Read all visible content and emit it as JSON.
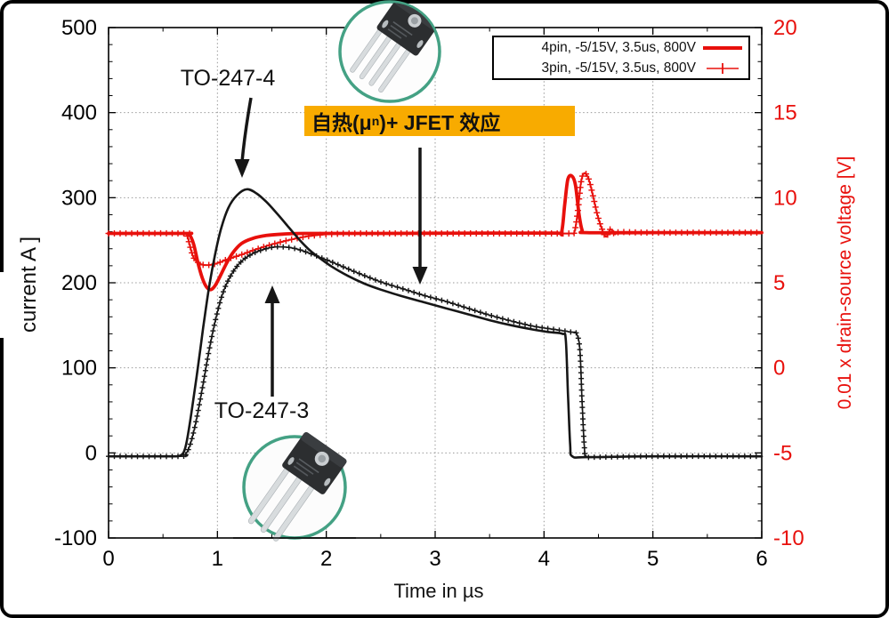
{
  "colors": {
    "red": "#e8100c",
    "black": "#161616",
    "grid": "#999999",
    "highlight": "#F8AB00",
    "ring": "#44A184"
  },
  "axes": {
    "x": {
      "label": "Time in µs",
      "min": 0,
      "max": 6,
      "ticks": [
        0,
        1,
        2,
        3,
        4,
        5,
        6
      ],
      "minor_step": 0.5
    },
    "y_left": {
      "label": "current A ]",
      "min": -100,
      "max": 500,
      "ticks": [
        500,
        400,
        300,
        200,
        100,
        0,
        -100
      ],
      "minor_step": 20
    },
    "y_right": {
      "label": "0.01 x drain-source voltage [V]",
      "min": -10,
      "max": 20,
      "ticks": [
        20,
        15,
        10,
        5,
        0,
        -5,
        -10
      ],
      "minor_step": 1
    }
  },
  "legend": {
    "entries": [
      {
        "label": "4pin, -5/15V, 3.5us, 800V",
        "style": "solid"
      },
      {
        "label": "3pin, -5/15V, 3.5us, 800V",
        "style": "plus"
      }
    ]
  },
  "annotations": {
    "package_top_label": "TO-247-4",
    "package_bottom_label": "TO-247-3",
    "effect_prefix": "自热(μ",
    "effect_sub": "n",
    "effect_suffix": ")+ JFET 效应"
  },
  "chart_data": {
    "type": "line",
    "title": "",
    "x": {
      "label": "Time in µs",
      "range": [
        0,
        6
      ]
    },
    "y_left": {
      "label": "current A ]",
      "range": [
        -100,
        500
      ]
    },
    "y_right": {
      "label": "0.01 x drain-source voltage [V]",
      "range": [
        -10,
        20
      ]
    },
    "grid": true,
    "legend_position": "top-right",
    "series": [
      {
        "name": "3pin, -5/15V, 3.5us, 800V (voltage)",
        "id": "3pin-voltage",
        "axis": "right",
        "style": "plus",
        "color": "#e8100c",
        "points": [
          [
            0,
            7.9
          ],
          [
            0.69,
            7.9
          ],
          [
            0.72,
            7.8
          ],
          [
            0.75,
            7.1
          ],
          [
            0.78,
            6.5
          ],
          [
            0.82,
            6.2
          ],
          [
            0.87,
            6.05
          ],
          [
            0.93,
            6.05
          ],
          [
            1.0,
            6.15
          ],
          [
            1.1,
            6.4
          ],
          [
            1.22,
            6.65
          ],
          [
            1.35,
            6.95
          ],
          [
            1.5,
            7.25
          ],
          [
            1.65,
            7.5
          ],
          [
            1.8,
            7.7
          ],
          [
            1.95,
            7.82
          ],
          [
            2.1,
            7.88
          ],
          [
            2.3,
            7.9
          ],
          [
            3.0,
            7.9
          ],
          [
            4.0,
            7.9
          ],
          [
            4.24,
            7.9
          ],
          [
            4.28,
            8.0
          ],
          [
            4.31,
            9.2
          ],
          [
            4.34,
            10.9
          ],
          [
            4.37,
            11.45
          ],
          [
            4.41,
            11.1
          ],
          [
            4.45,
            10.1
          ],
          [
            4.49,
            9.0
          ],
          [
            4.53,
            8.2
          ],
          [
            4.57,
            7.7
          ],
          [
            4.61,
            8.15
          ],
          [
            4.65,
            7.85
          ],
          [
            4.7,
            7.98
          ],
          [
            5,
            7.95
          ],
          [
            6,
            7.95
          ]
        ]
      },
      {
        "name": "4pin, -5/15V, 3.5us, 800V (voltage)",
        "id": "4pin-voltage",
        "axis": "right",
        "style": "solid",
        "color": "#e8100c",
        "points": [
          [
            0,
            7.9
          ],
          [
            0.7,
            7.9
          ],
          [
            0.74,
            7.85
          ],
          [
            0.78,
            7.3
          ],
          [
            0.82,
            6.2
          ],
          [
            0.86,
            5.3
          ],
          [
            0.9,
            4.75
          ],
          [
            0.94,
            4.6
          ],
          [
            0.98,
            4.85
          ],
          [
            1.03,
            5.45
          ],
          [
            1.08,
            6.1
          ],
          [
            1.14,
            6.75
          ],
          [
            1.22,
            7.3
          ],
          [
            1.32,
            7.6
          ],
          [
            1.45,
            7.78
          ],
          [
            1.6,
            7.86
          ],
          [
            1.8,
            7.9
          ],
          [
            2.5,
            7.9
          ],
          [
            3.5,
            7.92
          ],
          [
            4.1,
            7.92
          ],
          [
            4.16,
            7.95
          ],
          [
            4.19,
            9.6
          ],
          [
            4.22,
            11.1
          ],
          [
            4.26,
            11.25
          ],
          [
            4.29,
            10.7
          ],
          [
            4.32,
            9.1
          ],
          [
            4.35,
            8.1
          ],
          [
            4.39,
            7.95
          ],
          [
            5.0,
            7.95
          ],
          [
            6,
            7.95
          ]
        ]
      },
      {
        "name": "3pin, -5/15V, 3.5us, 800V (current)",
        "id": "3pin-current",
        "axis": "left",
        "style": "plus",
        "color": "#161616",
        "points": [
          [
            0,
            -4
          ],
          [
            0.66,
            -4
          ],
          [
            0.71,
            -1
          ],
          [
            0.75,
            10
          ],
          [
            0.8,
            35
          ],
          [
            0.86,
            75
          ],
          [
            0.92,
            118
          ],
          [
            0.98,
            155
          ],
          [
            1.05,
            188
          ],
          [
            1.13,
            210
          ],
          [
            1.22,
            225
          ],
          [
            1.32,
            234
          ],
          [
            1.42,
            239
          ],
          [
            1.52,
            242
          ],
          [
            1.62,
            242
          ],
          [
            1.72,
            240
          ],
          [
            1.82,
            236
          ],
          [
            1.92,
            231
          ],
          [
            2.02,
            226
          ],
          [
            2.15,
            219
          ],
          [
            2.3,
            211
          ],
          [
            2.5,
            201
          ],
          [
            2.7,
            193
          ],
          [
            2.9,
            185
          ],
          [
            3.1,
            178
          ],
          [
            3.3,
            170
          ],
          [
            3.5,
            162
          ],
          [
            3.7,
            155
          ],
          [
            3.9,
            149
          ],
          [
            4.1,
            145
          ],
          [
            4.25,
            142
          ],
          [
            4.3,
            140
          ],
          [
            4.33,
            120
          ],
          [
            4.35,
            60
          ],
          [
            4.37,
            8
          ],
          [
            4.39,
            -4
          ],
          [
            4.5,
            -5
          ],
          [
            5,
            -4
          ],
          [
            6,
            -4
          ]
        ]
      },
      {
        "name": "4pin, -5/15V, 3.5us, 800V (current)",
        "id": "4pin-current",
        "axis": "left",
        "style": "solid",
        "color": "#161616",
        "points": [
          [
            0,
            -4
          ],
          [
            0.55,
            -4
          ],
          [
            0.66,
            -3
          ],
          [
            0.7,
            4
          ],
          [
            0.73,
            22
          ],
          [
            0.77,
            55
          ],
          [
            0.82,
            100
          ],
          [
            0.87,
            148
          ],
          [
            0.92,
            192
          ],
          [
            0.97,
            228
          ],
          [
            1.03,
            262
          ],
          [
            1.1,
            288
          ],
          [
            1.18,
            303
          ],
          [
            1.27,
            310
          ],
          [
            1.36,
            305
          ],
          [
            1.45,
            295
          ],
          [
            1.55,
            281
          ],
          [
            1.65,
            266
          ],
          [
            1.75,
            251
          ],
          [
            1.85,
            238
          ],
          [
            1.95,
            228
          ],
          [
            2.05,
            219
          ],
          [
            2.2,
            208
          ],
          [
            2.35,
            199
          ],
          [
            2.5,
            192
          ],
          [
            2.7,
            184
          ],
          [
            2.9,
            177
          ],
          [
            3.1,
            170
          ],
          [
            3.3,
            163
          ],
          [
            3.5,
            156
          ],
          [
            3.7,
            150
          ],
          [
            3.9,
            145
          ],
          [
            4.05,
            142
          ],
          [
            4.17,
            140
          ],
          [
            4.2,
            133
          ],
          [
            4.22,
            70
          ],
          [
            4.24,
            10
          ],
          [
            4.26,
            -4
          ],
          [
            4.4,
            -5
          ],
          [
            5,
            -4
          ],
          [
            6,
            -4
          ]
        ]
      }
    ]
  }
}
